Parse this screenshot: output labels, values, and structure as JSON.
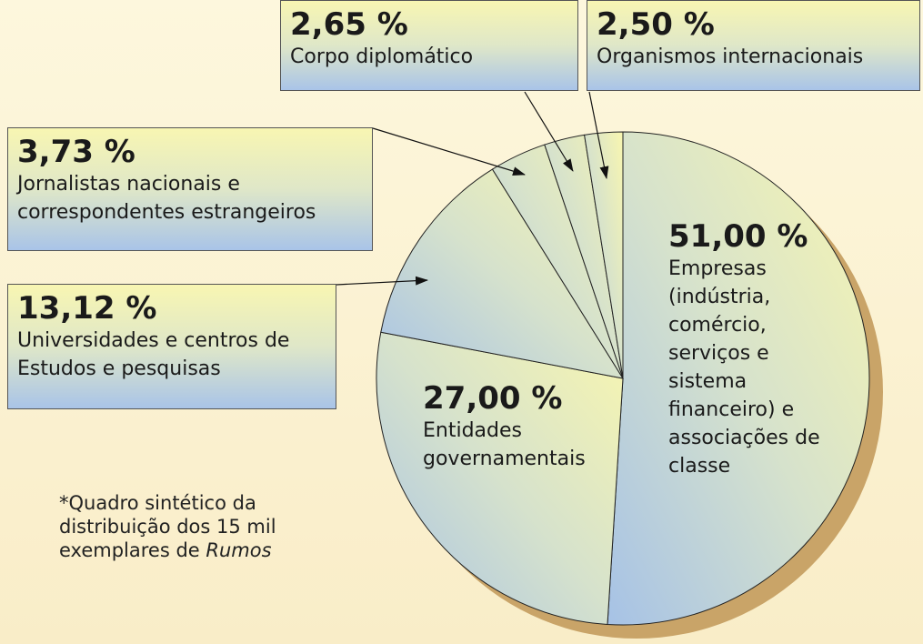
{
  "chart_data": {
    "type": "pie",
    "categories": [
      "Empresas (indústria, comércio, serviços e sistema financeiro) e associações de classe",
      "Entidades governamentais",
      "Universidades e centros de Estudos e pesquisas",
      "Jornalistas nacionais e correspondentes estrangeiros",
      "Corpo diplomático",
      "Organismos internacionais"
    ],
    "values": [
      51.0,
      27.0,
      13.12,
      3.73,
      2.65,
      2.5
    ],
    "value_labels": [
      "51,00 %",
      "27,00 %",
      "13,12 %",
      "3,73 %",
      "2,65 %",
      "2,50 %"
    ],
    "note": "*Quadro sintético da distribuição dos 15 mil exemplares de",
    "note_italic": "Rumos"
  }
}
